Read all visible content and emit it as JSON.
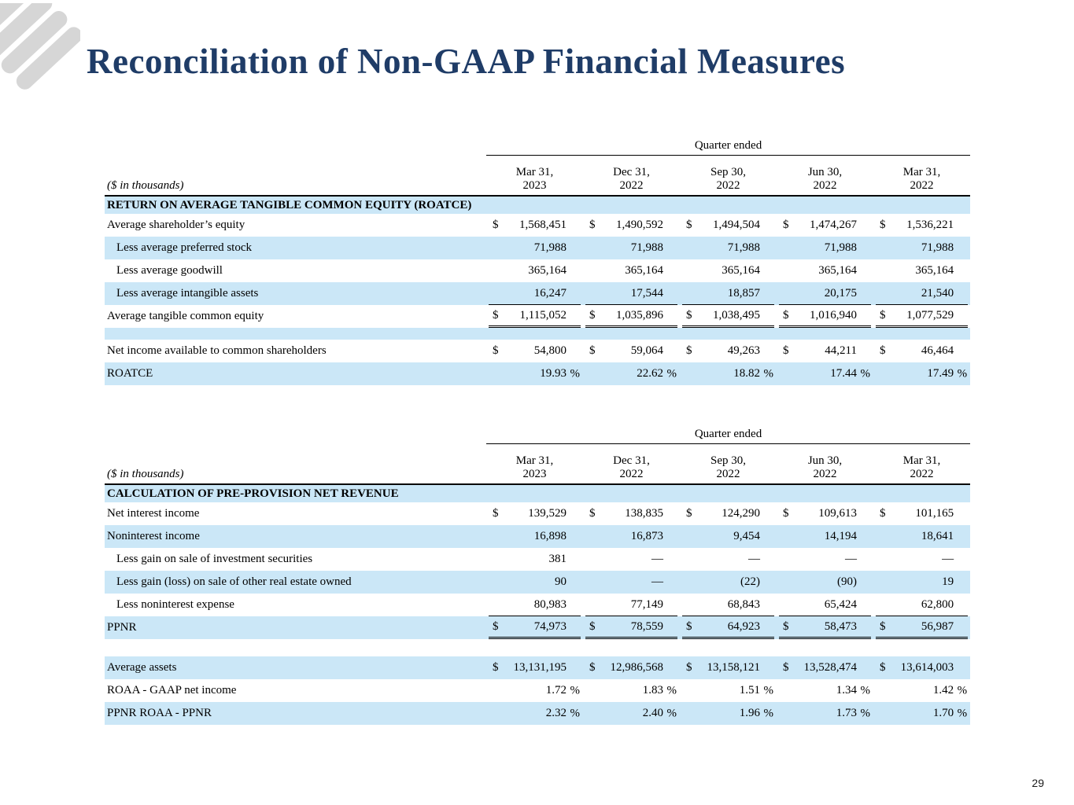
{
  "page": {
    "title": "Reconciliation of Non-GAAP Financial Measures",
    "page_number": "29"
  },
  "colors": {
    "title_navy": "#1f3c67",
    "row_highlight_blue": "#cbe7f7",
    "logo_gray": "#d6d6d6",
    "rule_black": "#000000"
  },
  "tables": [
    {
      "quarter_ended_label": "Quarter ended",
      "units_label": "($ in thousands)",
      "columns": [
        {
          "l1": "Mar 31,",
          "l2": "2023"
        },
        {
          "l1": "Dec 31,",
          "l2": "2022"
        },
        {
          "l1": "Sep 30,",
          "l2": "2022"
        },
        {
          "l1": "Jun 30,",
          "l2": "2022"
        },
        {
          "l1": "Mar 31,",
          "l2": "2022"
        }
      ],
      "rows": [
        {
          "type": "section",
          "label": "RETURN ON AVERAGE TANGIBLE COMMON EQUITY (ROATCE)",
          "shade": "blue"
        },
        {
          "type": "data",
          "label": "Average shareholder’s equity",
          "indent": false,
          "dollar": true,
          "suffix": "",
          "rule": "",
          "shade": "white",
          "values": [
            "1,568,451",
            "1,490,592",
            "1,494,504",
            "1,474,267",
            "1,536,221"
          ]
        },
        {
          "type": "data",
          "label": "Less average preferred stock",
          "indent": true,
          "dollar": false,
          "suffix": "",
          "rule": "",
          "shade": "blue",
          "values": [
            "71,988",
            "71,988",
            "71,988",
            "71,988",
            "71,988"
          ]
        },
        {
          "type": "data",
          "label": "Less average goodwill",
          "indent": true,
          "dollar": false,
          "suffix": "",
          "rule": "",
          "shade": "white",
          "values": [
            "365,164",
            "365,164",
            "365,164",
            "365,164",
            "365,164"
          ]
        },
        {
          "type": "data",
          "label": "Less average intangible assets",
          "indent": true,
          "dollar": false,
          "suffix": "",
          "rule": "underline",
          "shade": "blue",
          "values": [
            "16,247",
            "17,544",
            "18,857",
            "20,175",
            "21,540"
          ]
        },
        {
          "type": "data",
          "label": "Average tangible common equity",
          "indent": false,
          "dollar": true,
          "suffix": "",
          "rule": "double",
          "shade": "white",
          "values": [
            "1,115,052",
            "1,035,896",
            "1,038,495",
            "1,016,940",
            "1,077,529"
          ]
        },
        {
          "type": "spacer",
          "shade": "blue",
          "height": 13
        },
        {
          "type": "data",
          "label": "Net income available to common shareholders",
          "indent": false,
          "dollar": true,
          "suffix": "",
          "rule": "",
          "shade": "white",
          "values": [
            "54,800",
            "59,064",
            "49,263",
            "44,211",
            "46,464"
          ]
        },
        {
          "type": "data",
          "label": "ROATCE",
          "indent": false,
          "dollar": false,
          "suffix": "%",
          "rule": "",
          "shade": "blue",
          "values": [
            "19.93",
            "22.62",
            "18.82",
            "17.44",
            "17.49"
          ]
        }
      ]
    },
    {
      "quarter_ended_label": "Quarter ended",
      "units_label": "($ in thousands)",
      "columns": [
        {
          "l1": "Mar 31,",
          "l2": "2023"
        },
        {
          "l1": "Dec 31,",
          "l2": "2022"
        },
        {
          "l1": "Sep 30,",
          "l2": "2022"
        },
        {
          "l1": "Jun 30,",
          "l2": "2022"
        },
        {
          "l1": "Mar 31,",
          "l2": "2022"
        }
      ],
      "rows": [
        {
          "type": "section",
          "label": "CALCULATION OF PRE-PROVISION NET REVENUE",
          "shade": "blue"
        },
        {
          "type": "data",
          "label": "Net interest income",
          "indent": false,
          "dollar": true,
          "suffix": "",
          "rule": "",
          "shade": "white",
          "values": [
            "139,529",
            "138,835",
            "124,290",
            "109,613",
            "101,165"
          ]
        },
        {
          "type": "data",
          "label": "Noninterest income",
          "indent": false,
          "dollar": false,
          "suffix": "",
          "rule": "",
          "shade": "blue",
          "values": [
            "16,898",
            "16,873",
            "9,454",
            "14,194",
            "18,641"
          ]
        },
        {
          "type": "data",
          "label": "Less gain on sale of investment securities",
          "indent": true,
          "dollar": false,
          "suffix": "",
          "rule": "",
          "shade": "white",
          "values": [
            "381",
            "—",
            "—",
            "—",
            "—"
          ]
        },
        {
          "type": "data",
          "label": "Less gain (loss) on sale of other real estate owned",
          "indent": true,
          "dollar": false,
          "suffix": "",
          "rule": "",
          "shade": "blue",
          "values": [
            "90",
            "—",
            "(22)",
            "(90)",
            "19"
          ]
        },
        {
          "type": "data",
          "label": "Less noninterest expense",
          "indent": true,
          "dollar": false,
          "suffix": "",
          "rule": "underline",
          "shade": "white",
          "values": [
            "80,983",
            "77,149",
            "68,843",
            "65,424",
            "62,800"
          ]
        },
        {
          "type": "data",
          "label": "PPNR",
          "indent": false,
          "dollar": true,
          "suffix": "",
          "rule": "double",
          "shade": "blue",
          "values": [
            "74,973",
            "78,559",
            "64,923",
            "58,473",
            "56,987"
          ]
        },
        {
          "type": "spacer",
          "shade": "white",
          "height": 20
        },
        {
          "type": "data",
          "label": "Average assets",
          "indent": false,
          "dollar": true,
          "suffix": "",
          "rule": "",
          "shade": "blue",
          "values": [
            "13,131,195",
            "12,986,568",
            "13,158,121",
            "13,528,474",
            "13,614,003"
          ]
        },
        {
          "type": "data",
          "label": "ROAA - GAAP net income",
          "indent": false,
          "dollar": false,
          "suffix": "%",
          "rule": "",
          "shade": "white",
          "values": [
            "1.72",
            "1.83",
            "1.51",
            "1.34",
            "1.42"
          ]
        },
        {
          "type": "data",
          "label": "PPNR ROAA - PPNR",
          "indent": false,
          "dollar": false,
          "suffix": "%",
          "rule": "",
          "shade": "blue",
          "values": [
            "2.32",
            "2.40",
            "1.96",
            "1.73",
            "1.70"
          ]
        }
      ]
    }
  ]
}
